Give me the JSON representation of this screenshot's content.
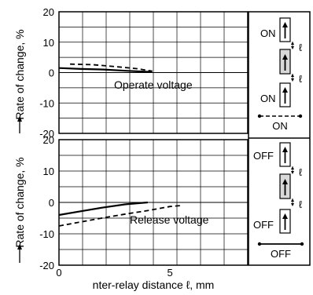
{
  "chart_data": [
    {
      "type": "line",
      "ylabel": "Rate of change, %",
      "ylim": [
        -20,
        20
      ],
      "yticks": [
        20,
        10,
        0,
        -10,
        -20
      ],
      "xlim": [
        0,
        8.5
      ],
      "annotation": "Operate voltage",
      "grid": true,
      "series": [
        {
          "style": "solid",
          "x": [
            0,
            1,
            2,
            3,
            4.2
          ],
          "y": [
            1.5,
            1.2,
            1.0,
            0.6,
            0.2
          ]
        },
        {
          "style": "dashed",
          "x": [
            0.5,
            1.5,
            2.5,
            3.5,
            4.2
          ],
          "y": [
            2.8,
            2.6,
            2.0,
            1.3,
            0.5
          ]
        }
      ]
    },
    {
      "type": "line",
      "ylabel": "Rate of change, %",
      "ylim": [
        -20,
        20
      ],
      "yticks": [
        20,
        10,
        0,
        -10,
        -20
      ],
      "xlim": [
        0,
        8.5
      ],
      "xticks": [
        0,
        5
      ],
      "xlabel": "nter-relay distance ℓ, mm",
      "annotation": "Release voltage",
      "grid": true,
      "series": [
        {
          "style": "solid",
          "x": [
            0,
            1,
            2,
            3,
            4
          ],
          "y": [
            -4,
            -2.8,
            -1.6,
            -0.6,
            0
          ]
        },
        {
          "style": "dashed",
          "x": [
            0,
            1,
            2,
            3,
            4,
            5,
            5.5
          ],
          "y": [
            -7.5,
            -6.2,
            -4.9,
            -3.7,
            -2.6,
            -1.3,
            -1
          ]
        }
      ]
    }
  ],
  "legend": {
    "top": {
      "labels": [
        "ON",
        "ON"
      ],
      "gap_label": "ℓ",
      "line_label": "ON",
      "line_style": "dashed"
    },
    "bottom": {
      "labels": [
        "OFF",
        "OFF"
      ],
      "gap_label": "ℓ",
      "line_label": "OFF",
      "line_style": "solid"
    }
  }
}
